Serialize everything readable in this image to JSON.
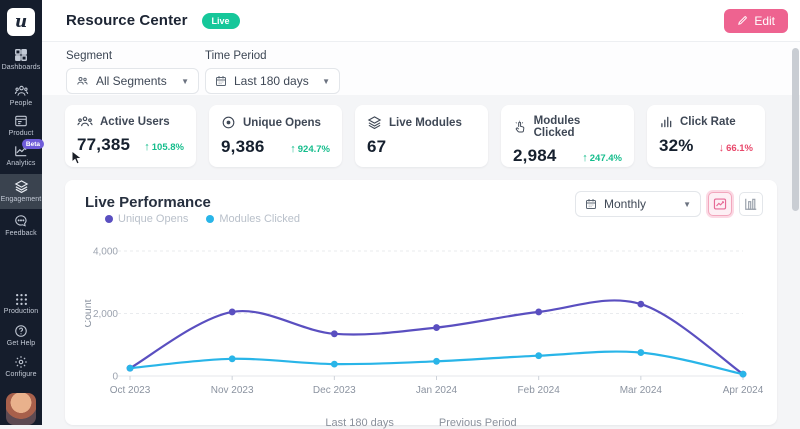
{
  "header": {
    "title": "Resource Center",
    "status_badge": "Live",
    "edit_label": "Edit"
  },
  "sidebar": {
    "logo": "u",
    "items": [
      {
        "label": "Dashboards",
        "icon": "dashboards-icon"
      },
      {
        "label": "People",
        "icon": "people-icon"
      },
      {
        "label": "Product",
        "icon": "product-icon"
      },
      {
        "label": "Analytics",
        "icon": "analytics-icon",
        "badge": "Beta"
      },
      {
        "label": "Engagement",
        "icon": "engagement-icon",
        "active": true
      },
      {
        "label": "Feedback",
        "icon": "feedback-icon"
      }
    ],
    "bottom_items": [
      {
        "label": "Production",
        "icon": "production-icon"
      },
      {
        "label": "Get Help",
        "icon": "get-help-icon"
      },
      {
        "label": "Configure",
        "icon": "configure-icon"
      }
    ]
  },
  "filters": {
    "segment": {
      "label": "Segment",
      "value": "All Segments",
      "icon": "people-icon"
    },
    "time_period": {
      "label": "Time Period",
      "value": "Last 180 days",
      "icon": "calendar-icon"
    }
  },
  "stats": [
    {
      "label": "Active Users",
      "value": "77,385",
      "delta": "105.8%",
      "arrow": "↑",
      "direction": "up",
      "icon": "users-icon"
    },
    {
      "label": "Unique Opens",
      "value": "9,386",
      "delta": "924.7%",
      "arrow": "↑",
      "direction": "up",
      "icon": "eye-icon"
    },
    {
      "label": "Live Modules",
      "value": "67",
      "delta": "",
      "arrow": "",
      "direction": "",
      "icon": "layers-icon"
    },
    {
      "label": "Modules Clicked",
      "value": "2,984",
      "delta": "247.4%",
      "arrow": "↑",
      "direction": "up",
      "icon": "click-hand-icon"
    },
    {
      "label": "Click Rate",
      "value": "32%",
      "delta": "66.1%",
      "arrow": "↓",
      "direction": "down",
      "icon": "bar-chart-icon"
    }
  ],
  "chart_panel": {
    "title": "Live Performance",
    "period_value": "Monthly",
    "footer_left": "Last 180 days",
    "footer_right": "Previous Period"
  },
  "chart_data": {
    "type": "line",
    "x": [
      "Oct 2023",
      "Nov 2023",
      "Dec 2023",
      "Jan 2024",
      "Feb 2024",
      "Mar 2024",
      "Apr 2024"
    ],
    "series": [
      {
        "name": "Unique Opens",
        "color": "#5a4fc0",
        "values": [
          250,
          2050,
          1350,
          1550,
          2050,
          2300,
          60
        ]
      },
      {
        "name": "Modules Clicked",
        "color": "#29b5e8",
        "values": [
          250,
          550,
          380,
          470,
          650,
          750,
          60
        ]
      }
    ],
    "title": "Live Performance",
    "xlabel": "",
    "ylabel": "Count",
    "ylim": [
      0,
      4000
    ],
    "yticks": [
      {
        "v": 0,
        "label": "0"
      },
      {
        "v": 2000,
        "label": "2,000"
      },
      {
        "v": 4000,
        "label": "4,000"
      }
    ],
    "grid": "dashed-horizontal",
    "legend_position": "top-left"
  },
  "colors": {
    "sidebar_bg": "#151d2c",
    "accent_pink": "#ee6390",
    "live_green": "#16c79a",
    "beta_purple": "#6f5cd9",
    "series_purple": "#5a4fc0",
    "series_blue": "#29b5e8",
    "delta_up": "#15bd8c",
    "delta_down": "#e8486b",
    "page_bg": "#f4f5f7"
  }
}
